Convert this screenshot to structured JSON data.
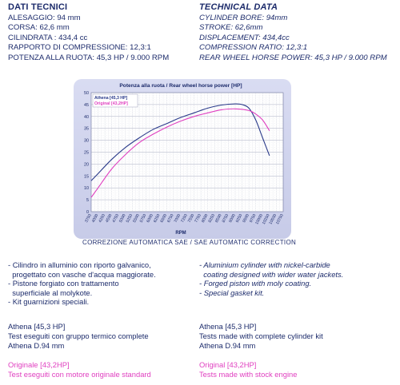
{
  "left_header": "DATI TECNICI",
  "right_header": "TECHNICAL DATA",
  "specs_it": [
    "ALESAGGIO: 94 mm",
    "CORSA: 62,6 mm",
    "CILINDRATA : 434,4 cc",
    "RAPPORTO DI COMPRESSIONE: 12,3:1",
    "POTENZA ALLA RUOTA: 45,3 HP / 9.000 RPM"
  ],
  "specs_en": [
    "CYLINDER BORE: 94mm",
    "STROKE: 62,6mm",
    "DISPLACEMENT: 434,4cc",
    "COMPRESSION RATIO: 12,3:1",
    "REAR WHEEL HORSE POWER: 45,3 HP / 9.000 RPM"
  ],
  "correction": "CORREZIONE AUTOMATICA SAE / SAE AUTOMATIC CORRECTION",
  "features_it": [
    "- Cilindro in alluminio con riporto galvanico,",
    "  progettato con vasche d'acqua maggiorate.",
    "- Pistone forgiato con trattamento",
    "  superficiale al molykote.",
    "- Kit guarnizioni speciali."
  ],
  "features_en": [
    "- Aluminium cylinder with nickel-carbide",
    "  coating designed with wider water jackets.",
    "- Forged piston with moly coating.",
    "- Special gasket kit."
  ],
  "athena_it": [
    "Athena [45,3 HP]",
    "Test eseguiti con gruppo termico complete",
    "Athena D.94 mm"
  ],
  "athena_en": [
    "Athena [45,3 HP]",
    "Tests made with complete cylinder kit",
    "Athena D.94 mm"
  ],
  "orig_it": [
    "Originale [43,2HP]",
    "Test eseguiti con motore originale standard"
  ],
  "orig_en": [
    "Original [43,2HP]",
    "Tests made with stock engine"
  ],
  "colors": {
    "text": "#1c2b6b",
    "athena": "#2a3a8a",
    "original": "#e040c0",
    "panel": "#d0d3ee"
  },
  "chart_data": {
    "type": "line",
    "title": "Potenza alla ruota / Rear wheel horse power [HP]",
    "xlabel": "RPM",
    "ylabel": "",
    "x_ticks": [
      "3750",
      "4000",
      "4250",
      "4500",
      "4750",
      "5000",
      "5250",
      "5500",
      "5750",
      "6000",
      "6250",
      "6500",
      "6750",
      "7000",
      "7250",
      "7500",
      "7750",
      "8000",
      "8250",
      "8500",
      "8750",
      "9000",
      "9250",
      "9500",
      "9750",
      "10000",
      "10250",
      "10500",
      "10750"
    ],
    "ylim": [
      0,
      50
    ],
    "y_ticks": [
      0,
      5,
      10,
      15,
      20,
      25,
      30,
      35,
      40,
      45,
      50
    ],
    "grid": true,
    "legend_position": "top-left",
    "series": [
      {
        "name": "Athena [45,3 HP]",
        "color": "#2a3a8a",
        "x": [
          3750,
          4000,
          4500,
          5000,
          5500,
          6000,
          6500,
          7000,
          7500,
          8000,
          8500,
          9000,
          9250,
          9500,
          9750,
          10000,
          10250
        ],
        "y": [
          13,
          16,
          22,
          27,
          31,
          34.5,
          37,
          39.5,
          41.5,
          43.5,
          44.8,
          45.3,
          45,
          43.5,
          38.5,
          31,
          23.5
        ]
      },
      {
        "name": "Original [43,2HP]",
        "color": "#e040c0",
        "x": [
          3750,
          4000,
          4500,
          5000,
          5500,
          6000,
          6500,
          7000,
          7500,
          8000,
          8500,
          9000,
          9500,
          9750,
          10000,
          10250
        ],
        "y": [
          6,
          10,
          18,
          24,
          29,
          32.5,
          35.5,
          38,
          40,
          41.5,
          42.8,
          43.2,
          42.5,
          41,
          38.5,
          34
        ]
      }
    ]
  }
}
